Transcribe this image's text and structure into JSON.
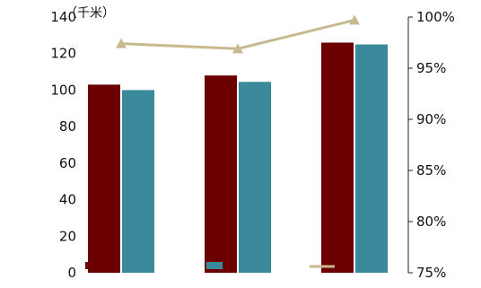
{
  "chart_data": {
    "type": "bar",
    "ylabel_unit": "（千米）",
    "ylim": [
      0,
      140
    ],
    "y_ticks": [
      "0",
      "20",
      "40",
      "60",
      "80",
      "100",
      "120",
      "140"
    ],
    "y2lim": [
      75,
      100
    ],
    "y2_ticks": [
      "75%",
      "80%",
      "85%",
      "90%",
      "95%",
      "100%"
    ],
    "categories": [
      "",
      "",
      ""
    ],
    "series": [
      {
        "name": "",
        "kind": "bar",
        "axis": "left",
        "color": "#6b0000",
        "values": [
          103,
          108,
          126
        ]
      },
      {
        "name": "",
        "kind": "bar",
        "axis": "left",
        "color": "#3b8a9c",
        "values": [
          100,
          104.5,
          125
        ]
      },
      {
        "name": "",
        "kind": "line",
        "axis": "right",
        "color": "#c8b98f",
        "values": [
          97.4,
          96.9,
          99.7
        ]
      }
    ],
    "legend_position": "bottom",
    "grid": false
  }
}
